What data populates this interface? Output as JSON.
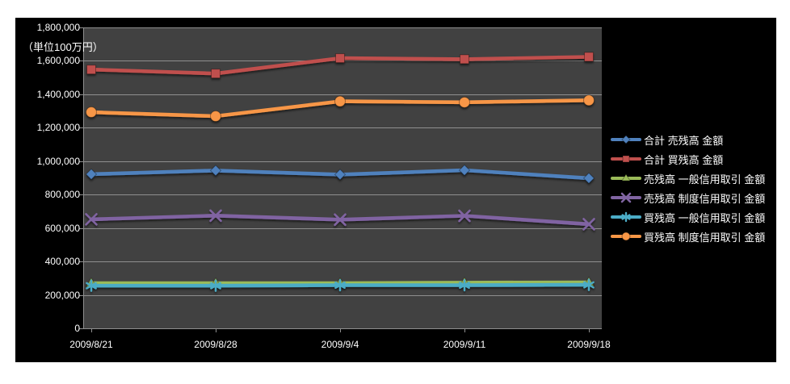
{
  "chart_data": {
    "type": "line",
    "title": "",
    "unit_label": "（単位100万円）",
    "categories": [
      "2009/8/21",
      "2009/8/28",
      "2009/9/4",
      "2009/9/11",
      "2009/9/18"
    ],
    "series": [
      {
        "name": "合計 売残高 金額",
        "marker": "diamond",
        "color": "#4F81BD",
        "values": [
          922000,
          944000,
          920000,
          946000,
          898000
        ]
      },
      {
        "name": "合計 買残高 金額",
        "marker": "square",
        "color": "#C0504D",
        "values": [
          1548000,
          1524000,
          1616000,
          1610000,
          1624000
        ]
      },
      {
        "name": "売残高 一般信用取引 金額",
        "marker": "triangle",
        "color": "#9BBB59",
        "values": [
          270000,
          270000,
          270000,
          273000,
          275000
        ]
      },
      {
        "name": "売残高 制度信用取引 金額",
        "marker": "x",
        "color": "#8064A2",
        "values": [
          652000,
          674000,
          650000,
          673000,
          623000
        ]
      },
      {
        "name": "買残高 一般信用取引 金額",
        "marker": "asterisk",
        "color": "#4BACC6",
        "values": [
          255000,
          255000,
          258000,
          258000,
          260000
        ]
      },
      {
        "name": "買残高 制度信用取引 金額",
        "marker": "circle",
        "color": "#F79646",
        "values": [
          1293000,
          1269000,
          1358000,
          1352000,
          1364000
        ]
      }
    ],
    "xlabel": "",
    "ylabel": "",
    "ylim": [
      0,
      1800000
    ],
    "ytick_step": 200000,
    "yticks": [
      "0",
      "200,000",
      "400,000",
      "600,000",
      "800,000",
      "1,000,000",
      "1,200,000",
      "1,400,000",
      "1,600,000",
      "1,800,000"
    ],
    "grid": true,
    "legend_position": "right",
    "colors": {
      "chart_background": "#000000",
      "plot_background": "#414141",
      "gridline": "#8F8F8F",
      "axis_text": "#FFFFFF"
    }
  }
}
